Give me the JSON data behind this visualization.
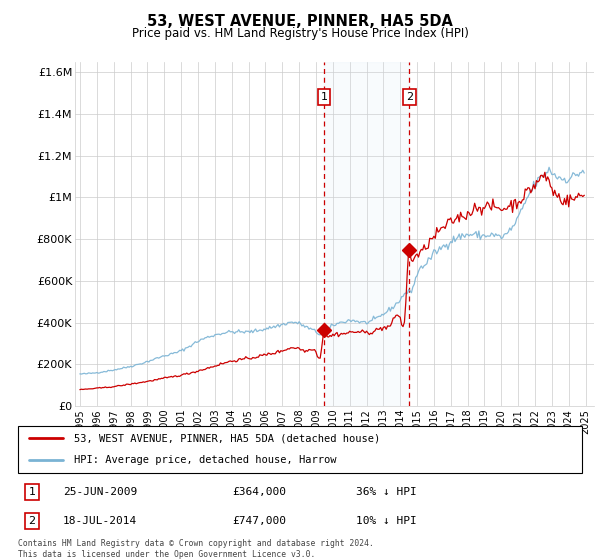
{
  "title": "53, WEST AVENUE, PINNER, HA5 5DA",
  "subtitle": "Price paid vs. HM Land Registry's House Price Index (HPI)",
  "footnote": "Contains HM Land Registry data © Crown copyright and database right 2024.\nThis data is licensed under the Open Government Licence v3.0.",
  "legend_line1": "53, WEST AVENUE, PINNER, HA5 5DA (detached house)",
  "legend_line2": "HPI: Average price, detached house, Harrow",
  "event1_label": "1",
  "event1_date": "25-JUN-2009",
  "event1_price": "£364,000",
  "event1_note": "36% ↓ HPI",
  "event2_label": "2",
  "event2_date": "18-JUL-2014",
  "event2_price": "£747,000",
  "event2_note": "10% ↓ HPI",
  "hpi_color": "#7ab3d4",
  "price_color": "#cc0000",
  "event_vline_color": "#cc0000",
  "shade_color": "#d6e8f5",
  "ylim": [
    0,
    1650000
  ],
  "yticks": [
    0,
    200000,
    400000,
    600000,
    800000,
    1000000,
    1200000,
    1400000,
    1600000
  ],
  "ytick_labels": [
    "£0",
    "£200K",
    "£400K",
    "£600K",
    "£800K",
    "£1M",
    "£1.2M",
    "£1.4M",
    "£1.6M"
  ],
  "event1_x": 2009.49,
  "event1_y": 364000,
  "event2_x": 2014.54,
  "event2_y": 747000,
  "shade_x1": 2009.49,
  "shade_x2": 2014.54,
  "xlim_left": 1994.7,
  "xlim_right": 2025.5,
  "xtick_years": [
    1995,
    1996,
    1997,
    1998,
    1999,
    2000,
    2001,
    2002,
    2003,
    2004,
    2005,
    2006,
    2007,
    2008,
    2009,
    2010,
    2011,
    2012,
    2013,
    2014,
    2015,
    2016,
    2017,
    2018,
    2019,
    2020,
    2021,
    2022,
    2023,
    2024,
    2025
  ]
}
